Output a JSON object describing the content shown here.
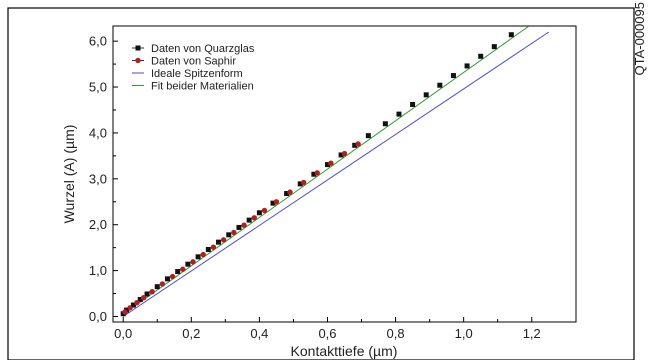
{
  "chart_data": {
    "type": "scatter",
    "xlabel": "Kontakttiefe (µm)",
    "ylabel": "Wurzel (A) (µm)",
    "xlim": [
      -0.03,
      1.33
    ],
    "ylim": [
      -0.12,
      6.33
    ],
    "xticks": [
      0.0,
      0.2,
      0.4,
      0.6,
      0.8,
      1.0,
      1.2
    ],
    "yticks": [
      0.0,
      1.0,
      2.0,
      3.0,
      4.0,
      5.0,
      6.0
    ],
    "xtick_labels": [
      "0,0",
      "0,2",
      "0,4",
      "0,6",
      "0,8",
      "1,0",
      "1,2"
    ],
    "ytick_labels": [
      "0,0",
      "1,0",
      "2,0",
      "3,0",
      "4,0",
      "5,0",
      "6,0"
    ],
    "grid": false,
    "legend_position": "top-left",
    "series": [
      {
        "name": "Daten von Quarzglas",
        "style": "markers",
        "marker": "square",
        "color": "#111111",
        "x": [
          0.0,
          0.01,
          0.03,
          0.05,
          0.07,
          0.1,
          0.13,
          0.16,
          0.19,
          0.22,
          0.25,
          0.28,
          0.31,
          0.34,
          0.37,
          0.4,
          0.44,
          0.48,
          0.52,
          0.56,
          0.6,
          0.64,
          0.68,
          0.72,
          0.77,
          0.81,
          0.85,
          0.89,
          0.93,
          0.97,
          1.01,
          1.05,
          1.09,
          1.14
        ],
        "y": [
          0.06,
          0.14,
          0.25,
          0.37,
          0.49,
          0.65,
          0.82,
          0.98,
          1.14,
          1.3,
          1.46,
          1.62,
          1.78,
          1.94,
          2.1,
          2.26,
          2.47,
          2.68,
          2.89,
          3.1,
          3.31,
          3.52,
          3.73,
          3.94,
          4.2,
          4.41,
          4.62,
          4.83,
          5.04,
          5.25,
          5.46,
          5.67,
          5.88,
          6.14
        ]
      },
      {
        "name": "Daten von Saphir",
        "style": "markers",
        "marker": "circle",
        "color": "#b3201b",
        "x": [
          0.005,
          0.02,
          0.04,
          0.06,
          0.085,
          0.115,
          0.145,
          0.175,
          0.205,
          0.235,
          0.265,
          0.295,
          0.325,
          0.355,
          0.385,
          0.415,
          0.45,
          0.49,
          0.53,
          0.57,
          0.61,
          0.65,
          0.69
        ],
        "y": [
          0.1,
          0.19,
          0.3,
          0.41,
          0.54,
          0.71,
          0.87,
          1.03,
          1.19,
          1.35,
          1.51,
          1.67,
          1.83,
          1.99,
          2.15,
          2.31,
          2.5,
          2.71,
          2.92,
          3.13,
          3.34,
          3.55,
          3.76
        ]
      },
      {
        "name": "Ideale Spitzenform",
        "style": "line",
        "color": "#4a4ae6",
        "x": [
          0.0,
          1.25
        ],
        "y": [
          0.0,
          6.2
        ]
      },
      {
        "name": "Fit beider Materialien",
        "style": "line",
        "color": "#2f9e2f",
        "x": [
          0.0,
          1.19
        ],
        "y": [
          0.05,
          6.32
        ]
      }
    ]
  },
  "side_text": "QTA-000095"
}
